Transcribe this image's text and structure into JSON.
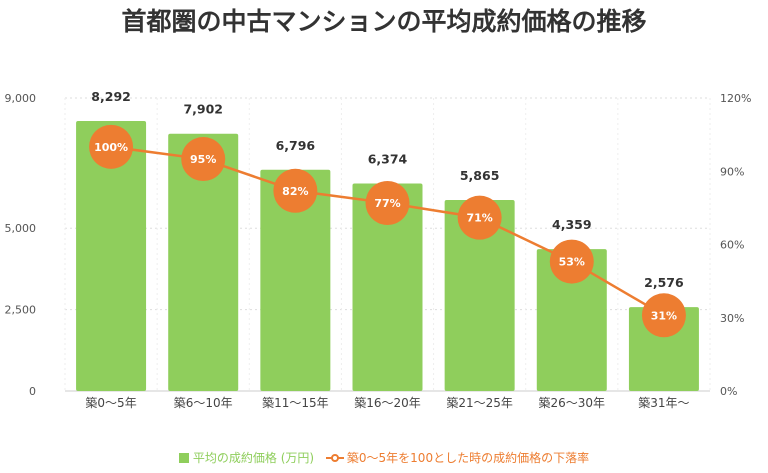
{
  "chart_data": {
    "type": "bar+line",
    "title": "首都圏の中古マンションの平均成約価格の推移",
    "categories": [
      "築0〜5年",
      "築6〜10年",
      "築11〜15年",
      "築16〜20年",
      "築21〜25年",
      "築26〜30年",
      "築31年〜"
    ],
    "series": [
      {
        "name": "平均の成約価格 (万円)",
        "type": "bar",
        "axis": "left",
        "color": "#8fce5c",
        "values": [
          8292,
          7902,
          6796,
          6374,
          5865,
          4359,
          2576
        ],
        "labels": [
          "8,292",
          "7,902",
          "6,796",
          "6,374",
          "5,865",
          "4,359",
          "2,576"
        ]
      },
      {
        "name": "築0〜5年を100とした時の成約価格の下落率",
        "type": "line",
        "axis": "right",
        "color": "#ed7d31",
        "values": [
          100,
          95,
          82,
          77,
          71,
          53,
          31
        ],
        "labels": [
          "100%",
          "95%",
          "82%",
          "77%",
          "71%",
          "53%",
          "31%"
        ]
      }
    ],
    "left_axis": {
      "range": [
        0,
        9000
      ],
      "ticks": [
        0,
        2500,
        5000,
        9000
      ],
      "tick_labels": [
        "0",
        "2,500",
        "5,000",
        "9,000"
      ]
    },
    "right_axis": {
      "range": [
        0,
        120
      ],
      "ticks": [
        0,
        30,
        60,
        90,
        120
      ],
      "tick_labels": [
        "0%",
        "30%",
        "60%",
        "90%",
        "120%"
      ]
    },
    "grid": true,
    "legend_position": "bottom"
  }
}
